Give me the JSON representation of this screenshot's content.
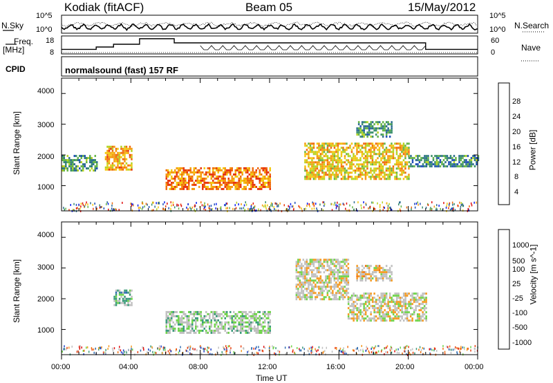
{
  "header": {
    "station": "Kodiak (fitACF)",
    "beam": "Beam 05",
    "date": "15/May/2012"
  },
  "side_labels": {
    "nsky": "N.Sky",
    "nsearch": "N.Search",
    "freq": "Freq.",
    "freq_unit": "[MHz]",
    "nave": "Nave",
    "cpid": "CPID",
    "cpid_value": "normalsound (fast) 157 RF"
  },
  "noise_axis": {
    "ticks_left": [
      "10^5",
      "10^0"
    ],
    "ticks_right": [
      "10^5",
      "10^0"
    ]
  },
  "freq_axis": {
    "ticks_left": [
      "18",
      "8"
    ],
    "ticks_right": [
      "60",
      "0"
    ]
  },
  "power_panel": {
    "ylabel": "Slant Range [km]",
    "yticks": [
      "4000",
      "3000",
      "2000",
      "1000"
    ],
    "colorbar_label": "Power [dB]",
    "colorbar_ticks": [
      "28",
      "24",
      "20",
      "16",
      "12",
      "8",
      "4"
    ],
    "colors": [
      "#0a1ef0",
      "#1f4fb8",
      "#2e6e8f",
      "#3a8f6a",
      "#64b446",
      "#b5d322",
      "#f2c80f",
      "#f59a0d",
      "#f06a0c",
      "#e8360c",
      "#e00d0d"
    ]
  },
  "velocity_panel": {
    "ylabel": "Slant Range [km]",
    "yticks": [
      "4000",
      "3000",
      "2000",
      "1000"
    ],
    "colorbar_label": "Velocity [m s^-1]",
    "colorbar_ticks": [
      "1000",
      "500",
      "100",
      "25",
      "-25",
      "-100",
      "-500",
      "-1000"
    ],
    "colors": [
      "#2040c8",
      "#2f6cb0",
      "#3a9b7a",
      "#6fd44a",
      "#c0c0c0",
      "#c0c0c0",
      "#f59a20",
      "#f07010",
      "#e84010",
      "#e00d0d"
    ]
  },
  "x_axis": {
    "label": "Time UT",
    "ticks": [
      "00:00",
      "04:00",
      "08:00",
      "12:00",
      "16:00",
      "20:00",
      "00:00"
    ]
  },
  "chart_data": {
    "type": "heatmap",
    "title": "Kodiak (fitACF) Beam 05 15/May/2012",
    "xlabel": "Time UT",
    "ylabel": "Slant Range [km]",
    "x_range": [
      "00:00",
      "24:00"
    ],
    "ylim": [
      180,
      4500
    ],
    "panels": [
      {
        "name": "Power",
        "unit": "dB",
        "clim": [
          0,
          30
        ],
        "echo_bands": [
          {
            "x": [
              0,
              2
            ],
            "y": [
              1500,
              2000
            ],
            "value": 10
          },
          {
            "x": [
              2.5,
              4
            ],
            "y": [
              1500,
              2300
            ],
            "value": 20
          },
          {
            "x": [
              6,
              12
            ],
            "y": [
              900,
              1600
            ],
            "value": 22
          },
          {
            "x": [
              14,
              20
            ],
            "y": [
              1200,
              2400
            ],
            "value": 18
          },
          {
            "x": [
              17,
              19
            ],
            "y": [
              2600,
              3100
            ],
            "value": 10
          },
          {
            "x": [
              20,
              24
            ],
            "y": [
              1600,
              2000
            ],
            "value": 9
          }
        ]
      },
      {
        "name": "Velocity",
        "unit": "m s^-1",
        "clim": [
          -1000,
          1000
        ],
        "echo_bands": [
          {
            "x": [
              3,
              4
            ],
            "y": [
              1800,
              2300
            ],
            "value": -300
          },
          {
            "x": [
              6,
              12
            ],
            "y": [
              900,
              1600
            ],
            "value": -150
          },
          {
            "x": [
              13.5,
              16.5
            ],
            "y": [
              2000,
              3300
            ],
            "value": 0
          },
          {
            "x": [
              16.5,
              21
            ],
            "y": [
              1300,
              2200
            ],
            "value": 0
          },
          {
            "x": [
              17,
              19
            ],
            "y": [
              2600,
              3100
            ],
            "value": 100
          }
        ]
      }
    ],
    "frequency_MHz": {
      "x": [
        0,
        2,
        2.5,
        3,
        4.5,
        6.5,
        21,
        24
      ],
      "y": [
        10.3,
        12,
        12,
        14,
        18,
        15,
        10.3,
        10.3
      ]
    },
    "grid": false
  }
}
